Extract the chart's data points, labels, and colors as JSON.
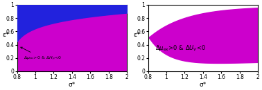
{
  "xlim": [
    0.8,
    2.0
  ],
  "ylim": [
    0.0,
    1.0
  ],
  "xlabel": "σ*",
  "ylabel": "ε*",
  "blue_color": "#2222DD",
  "magenta_color": "#CC00CC",
  "background_color": "#ffffff",
  "xticks": [
    0.8,
    1.0,
    1.2,
    1.4,
    1.6,
    1.8,
    2.0
  ],
  "xticklabels": [
    "0.8",
    "1",
    "1.2",
    "1.4",
    "1.6",
    "1.8",
    "2"
  ],
  "yticks": [
    0.0,
    0.2,
    0.4,
    0.6,
    0.8,
    1.0
  ],
  "yticklabels": [
    "0",
    "0.2",
    "0.4",
    "0.6",
    "0.8",
    "1"
  ]
}
